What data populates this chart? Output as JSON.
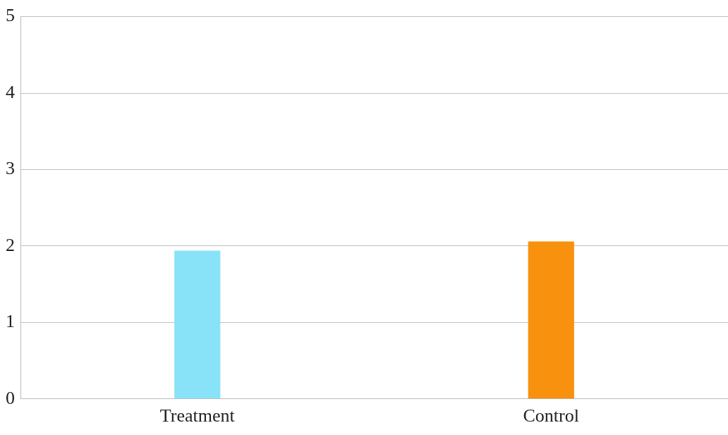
{
  "chart_data": {
    "type": "bar",
    "categories": [
      "Treatment",
      "Control"
    ],
    "values": [
      1.94,
      2.06
    ],
    "colors": [
      "#89e3f8",
      "#f7910e"
    ],
    "ylim": [
      0,
      5
    ],
    "yticks": [
      0,
      1,
      2,
      3,
      4,
      5
    ],
    "grid": "y"
  }
}
